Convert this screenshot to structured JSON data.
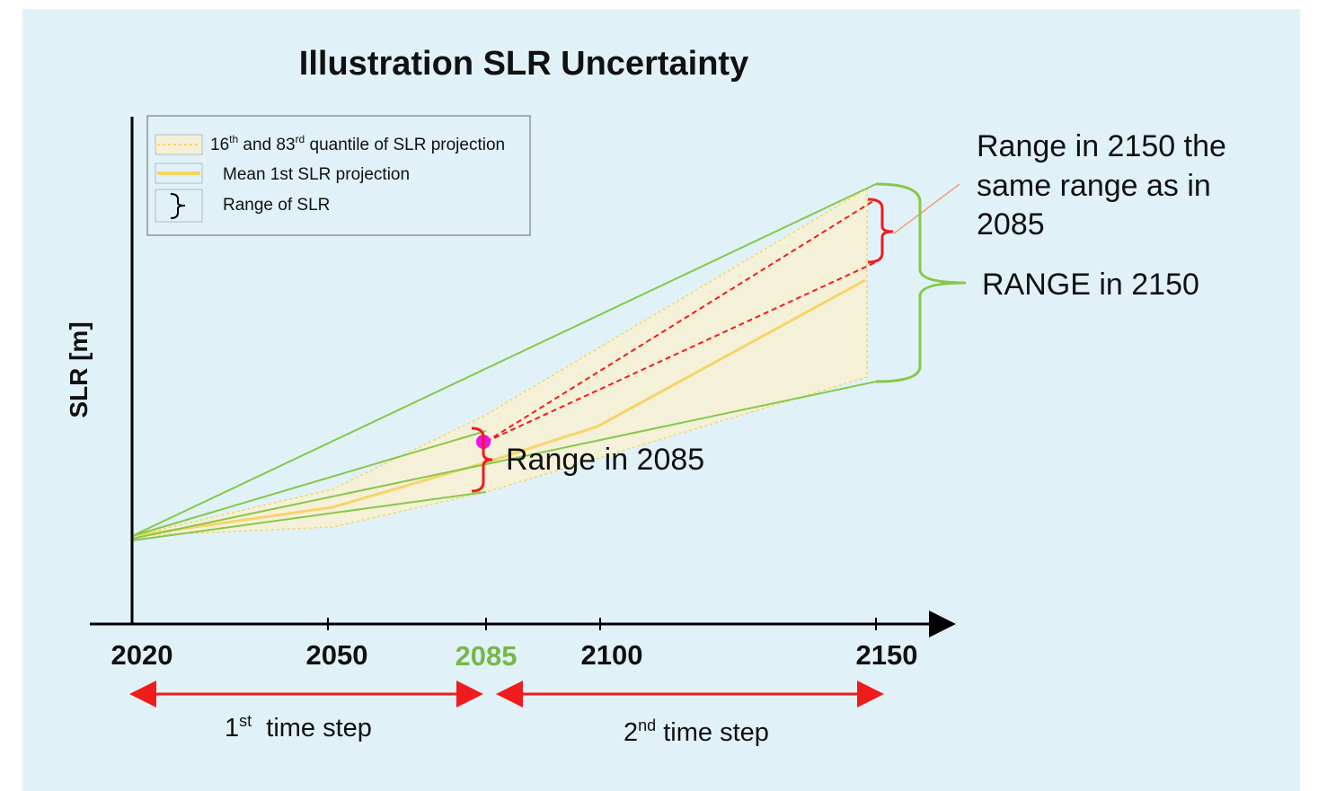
{
  "header": {
    "title": "Illustration SLR Uncertainty"
  },
  "axis": {
    "y_label": "SLR [m]",
    "x_ticks": [
      "2020",
      "2050",
      "2085",
      "2100",
      "2150"
    ]
  },
  "legend": {
    "quantile": [
      "16",
      "th",
      " and 83",
      "rd",
      " quantile of SLR projection"
    ],
    "mean": "Mean 1st SLR projection",
    "range": "Range of SLR"
  },
  "annotations": {
    "range_2150_same": [
      "Range in 2150 the",
      "same range as in",
      "2085"
    ],
    "range_2150": "RANGE in 2150",
    "range_2085": "Range in 2085"
  },
  "time_steps": {
    "first": [
      "1",
      "st",
      "  time step"
    ],
    "second": [
      "2",
      "nd",
      " time step"
    ]
  }
}
